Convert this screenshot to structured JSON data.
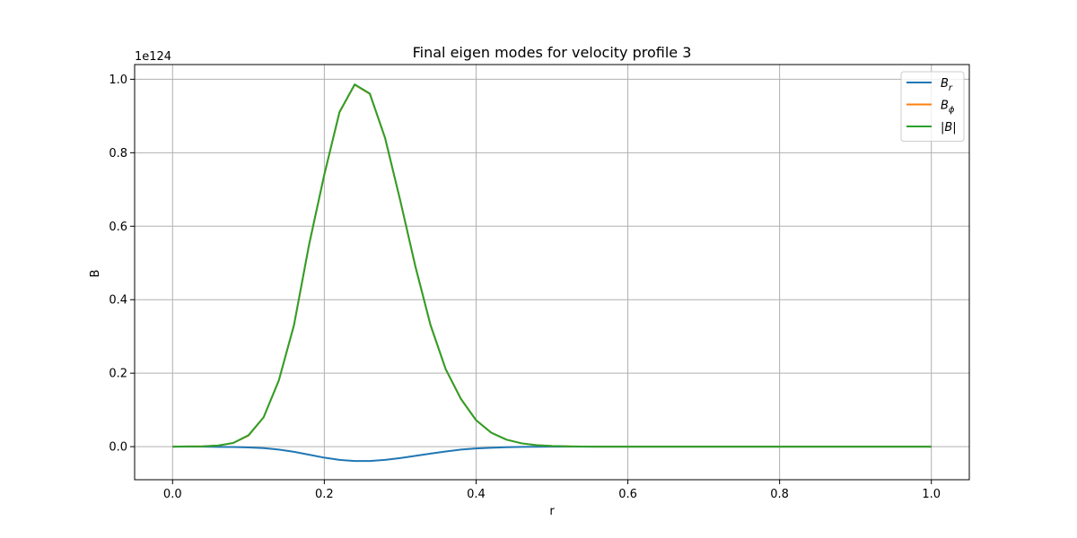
{
  "chart_data": {
    "type": "line",
    "title": "Final eigen modes for velocity profile 3",
    "xlabel": "r",
    "ylabel": "B",
    "y_offset_label": "1e124",
    "xlim": [
      -0.05,
      1.05
    ],
    "ylim": [
      -0.09,
      1.04
    ],
    "grid": true,
    "legend_position": "top-right",
    "x_ticks": [
      0.0,
      0.2,
      0.4,
      0.6,
      0.8,
      1.0
    ],
    "x_tick_labels": [
      "0.0",
      "0.2",
      "0.4",
      "0.6",
      "0.8",
      "1.0"
    ],
    "y_ticks": [
      0.0,
      0.2,
      0.4,
      0.6,
      0.8,
      1.0
    ],
    "y_tick_labels": [
      "0.0",
      "0.2",
      "0.4",
      "0.6",
      "0.8",
      "1.0"
    ],
    "x": [
      0.0,
      0.02,
      0.04,
      0.06,
      0.08,
      0.1,
      0.12,
      0.14,
      0.16,
      0.18,
      0.2,
      0.22,
      0.24,
      0.26,
      0.28,
      0.3,
      0.32,
      0.34,
      0.36,
      0.38,
      0.4,
      0.42,
      0.44,
      0.46,
      0.48,
      0.5,
      0.52,
      0.54,
      0.56,
      0.58,
      0.6,
      0.7,
      0.8,
      0.9,
      1.0
    ],
    "series": [
      {
        "name": "B_r",
        "legend_label": "B_r",
        "color": "#1f77b4",
        "values": [
          0.0,
          0.0,
          0.0,
          -0.0005,
          -0.001,
          -0.002,
          -0.004,
          -0.008,
          -0.014,
          -0.022,
          -0.03,
          -0.036,
          -0.039,
          -0.039,
          -0.036,
          -0.031,
          -0.025,
          -0.019,
          -0.013,
          -0.008,
          -0.005,
          -0.003,
          -0.0015,
          -0.0007,
          -0.0003,
          -0.0001,
          0.0,
          0.0,
          0.0,
          0.0,
          0.0,
          0.0,
          0.0,
          0.0,
          0.0
        ]
      },
      {
        "name": "B_phi",
        "legend_label": "B_ϕ",
        "color": "#ff7f0e",
        "values": [
          0.0,
          0.0005,
          0.001,
          0.003,
          0.01,
          0.03,
          0.08,
          0.18,
          0.33,
          0.55,
          0.74,
          0.91,
          0.985,
          0.96,
          0.84,
          0.67,
          0.49,
          0.33,
          0.21,
          0.13,
          0.072,
          0.038,
          0.019,
          0.009,
          0.004,
          0.0018,
          0.0008,
          0.0003,
          0.0001,
          0.0,
          0.0,
          0.0,
          0.0,
          0.0,
          0.0
        ]
      },
      {
        "name": "|B|",
        "legend_label": "|B|",
        "color": "#2ca02c",
        "values": [
          0.0,
          0.0005,
          0.001,
          0.003,
          0.01,
          0.031,
          0.08,
          0.18,
          0.331,
          0.551,
          0.741,
          0.911,
          0.986,
          0.961,
          0.841,
          0.671,
          0.491,
          0.331,
          0.211,
          0.13,
          0.072,
          0.038,
          0.019,
          0.009,
          0.004,
          0.0018,
          0.0008,
          0.0003,
          0.0001,
          0.0,
          0.0,
          0.0,
          0.0,
          0.0,
          0.0
        ]
      }
    ]
  }
}
